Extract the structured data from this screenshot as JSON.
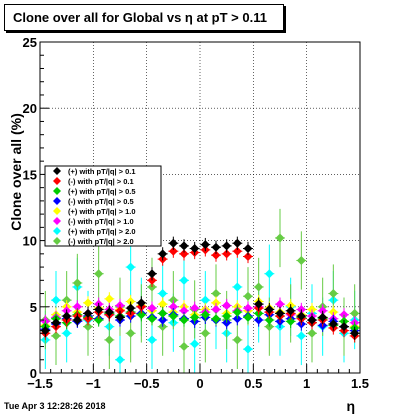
{
  "chart_data": {
    "type": "scatter",
    "title": "Clone  over all for Global vs  η at pT > 0.11",
    "xlabel": "η",
    "ylabel": "Clone  over all (%)",
    "xlim": [
      -1.5,
      1.5
    ],
    "ylim": [
      0,
      25
    ],
    "xticks": [
      "−1.5",
      "−1",
      "−0.5",
      "0",
      "0.5",
      "1",
      "1.5"
    ],
    "yticks": [
      "0",
      "5",
      "10",
      "15",
      "20",
      "25"
    ],
    "grid": true,
    "legend_position": "middle-left",
    "series": [
      {
        "name": "(+) with pT/|q| > 0.1",
        "color": "#000000",
        "points": [
          [
            -1.45,
            3.2
          ],
          [
            -1.35,
            3.8
          ],
          [
            -1.25,
            4.3
          ],
          [
            -1.15,
            4.0
          ],
          [
            -1.05,
            4.5
          ],
          [
            -0.95,
            4.8
          ],
          [
            -0.85,
            4.6
          ],
          [
            -0.75,
            4.2
          ],
          [
            -0.65,
            4.9
          ],
          [
            -0.55,
            5.3
          ],
          [
            -0.45,
            7.5
          ],
          [
            -0.35,
            9.0
          ],
          [
            -0.25,
            9.8
          ],
          [
            -0.15,
            9.6
          ],
          [
            -0.05,
            9.4
          ],
          [
            0.05,
            9.7
          ],
          [
            0.15,
            9.5
          ],
          [
            0.25,
            9.6
          ],
          [
            0.35,
            9.8
          ],
          [
            0.45,
            9.4
          ],
          [
            0.55,
            5.2
          ],
          [
            0.65,
            4.8
          ],
          [
            0.75,
            4.5
          ],
          [
            0.85,
            4.7
          ],
          [
            0.95,
            4.3
          ],
          [
            1.05,
            4.0
          ],
          [
            1.15,
            4.2
          ],
          [
            1.25,
            3.7
          ],
          [
            1.35,
            3.5
          ],
          [
            1.45,
            3.0
          ]
        ]
      },
      {
        "name": "(-) with pT/|q| > 0.1",
        "color": "#ff0000",
        "points": [
          [
            -1.45,
            3.0
          ],
          [
            -1.35,
            3.5
          ],
          [
            -1.25,
            4.0
          ],
          [
            -1.15,
            4.3
          ],
          [
            -1.05,
            4.1
          ],
          [
            -0.95,
            4.6
          ],
          [
            -0.85,
            4.4
          ],
          [
            -0.75,
            4.7
          ],
          [
            -0.65,
            4.5
          ],
          [
            -0.55,
            5.0
          ],
          [
            -0.45,
            7.0
          ],
          [
            -0.35,
            8.6
          ],
          [
            -0.25,
            9.2
          ],
          [
            -0.15,
            9.0
          ],
          [
            -0.05,
            9.1
          ],
          [
            0.05,
            9.3
          ],
          [
            0.15,
            8.9
          ],
          [
            0.25,
            9.0
          ],
          [
            0.35,
            9.2
          ],
          [
            0.45,
            8.8
          ],
          [
            0.55,
            4.9
          ],
          [
            0.65,
            4.6
          ],
          [
            0.75,
            4.3
          ],
          [
            0.85,
            4.5
          ],
          [
            0.95,
            4.1
          ],
          [
            1.05,
            3.8
          ],
          [
            1.15,
            4.0
          ],
          [
            1.25,
            3.4
          ],
          [
            1.35,
            3.2
          ],
          [
            1.45,
            2.8
          ]
        ]
      },
      {
        "name": "(+) with pT/|q| > 0.5",
        "color": "#00cc00",
        "points": [
          [
            -1.45,
            3.5
          ],
          [
            -1.35,
            4.1
          ],
          [
            -1.25,
            3.8
          ],
          [
            -1.15,
            4.4
          ],
          [
            -1.05,
            4.2
          ],
          [
            -0.95,
            4.0
          ],
          [
            -0.85,
            4.5
          ],
          [
            -0.75,
            4.3
          ],
          [
            -0.65,
            4.6
          ],
          [
            -0.55,
            4.4
          ],
          [
            -0.45,
            4.1
          ],
          [
            -0.35,
            4.5
          ],
          [
            -0.25,
            4.3
          ],
          [
            -0.15,
            4.0
          ],
          [
            -0.05,
            4.2
          ],
          [
            0.05,
            4.4
          ],
          [
            0.15,
            4.1
          ],
          [
            0.25,
            4.3
          ],
          [
            0.35,
            4.6
          ],
          [
            0.45,
            4.2
          ],
          [
            0.55,
            4.5
          ],
          [
            0.65,
            4.0
          ],
          [
            0.75,
            4.3
          ],
          [
            0.85,
            3.9
          ],
          [
            0.95,
            4.2
          ],
          [
            1.05,
            3.8
          ],
          [
            1.15,
            4.1
          ],
          [
            1.25,
            3.6
          ],
          [
            1.35,
            3.9
          ],
          [
            1.45,
            3.4
          ]
        ]
      },
      {
        "name": "(-) with pT/|q| > 0.5",
        "color": "#0000ff",
        "points": [
          [
            -1.45,
            3.3
          ],
          [
            -1.35,
            3.7
          ],
          [
            -1.25,
            4.1
          ],
          [
            -1.15,
            3.9
          ],
          [
            -1.05,
            4.3
          ],
          [
            -0.95,
            4.1
          ],
          [
            -0.85,
            4.4
          ],
          [
            -0.75,
            4.0
          ],
          [
            -0.65,
            4.3
          ],
          [
            -0.55,
            4.5
          ],
          [
            -0.45,
            4.2
          ],
          [
            -0.35,
            4.0
          ],
          [
            -0.25,
            4.4
          ],
          [
            -0.15,
            4.1
          ],
          [
            -0.05,
            3.9
          ],
          [
            0.05,
            4.2
          ],
          [
            0.15,
            4.0
          ],
          [
            0.25,
            3.8
          ],
          [
            0.35,
            4.1
          ],
          [
            0.45,
            4.3
          ],
          [
            0.55,
            4.0
          ],
          [
            0.65,
            4.4
          ],
          [
            0.75,
            3.9
          ],
          [
            0.85,
            4.1
          ],
          [
            0.95,
            3.7
          ],
          [
            1.05,
            4.0
          ],
          [
            1.15,
            3.6
          ],
          [
            1.25,
            3.9
          ],
          [
            1.35,
            3.5
          ],
          [
            1.45,
            3.2
          ]
        ]
      },
      {
        "name": "(+) with pT/|q| > 1.0",
        "color": "#ffff00",
        "points": [
          [
            -1.45,
            3.6
          ],
          [
            -1.35,
            4.4
          ],
          [
            -1.25,
            5.0
          ],
          [
            -1.15,
            4.6
          ],
          [
            -1.05,
            5.3
          ],
          [
            -0.95,
            4.9
          ],
          [
            -0.85,
            5.6
          ],
          [
            -0.75,
            4.8
          ],
          [
            -0.65,
            5.4
          ],
          [
            -0.55,
            5.1
          ],
          [
            -0.45,
            4.7
          ],
          [
            -0.35,
            5.2
          ],
          [
            -0.25,
            4.6
          ],
          [
            -0.15,
            5.0
          ],
          [
            -0.05,
            4.4
          ],
          [
            0.05,
            4.8
          ],
          [
            0.15,
            5.3
          ],
          [
            0.25,
            4.5
          ],
          [
            0.35,
            5.0
          ],
          [
            0.45,
            4.7
          ],
          [
            0.55,
            5.4
          ],
          [
            0.65,
            4.9
          ],
          [
            0.75,
            4.6
          ],
          [
            0.85,
            5.1
          ],
          [
            0.95,
            4.4
          ],
          [
            1.05,
            4.8
          ],
          [
            1.15,
            4.2
          ],
          [
            1.25,
            4.6
          ],
          [
            1.35,
            3.9
          ],
          [
            1.45,
            3.5
          ]
        ]
      },
      {
        "name": "(-) with pT/|q| > 1.0",
        "color": "#ff00ff",
        "points": [
          [
            -1.45,
            3.9
          ],
          [
            -1.35,
            4.2
          ],
          [
            -1.25,
            4.7
          ],
          [
            -1.15,
            5.0
          ],
          [
            -1.05,
            4.5
          ],
          [
            -0.95,
            5.2
          ],
          [
            -0.85,
            4.8
          ],
          [
            -0.75,
            5.1
          ],
          [
            -0.65,
            4.6
          ],
          [
            -0.55,
            5.0
          ],
          [
            -0.45,
            4.9
          ],
          [
            -0.35,
            4.5
          ],
          [
            -0.25,
            5.0
          ],
          [
            -0.15,
            4.7
          ],
          [
            -0.05,
            4.9
          ],
          [
            0.05,
            4.6
          ],
          [
            0.15,
            4.8
          ],
          [
            0.25,
            5.1
          ],
          [
            0.35,
            4.7
          ],
          [
            0.45,
            4.9
          ],
          [
            0.55,
            5.0
          ],
          [
            0.65,
            4.6
          ],
          [
            0.75,
            5.2
          ],
          [
            0.85,
            4.4
          ],
          [
            0.95,
            4.8
          ],
          [
            1.05,
            4.3
          ],
          [
            1.15,
            4.7
          ],
          [
            1.25,
            4.1
          ],
          [
            1.35,
            4.4
          ],
          [
            1.45,
            3.8
          ]
        ]
      },
      {
        "name": "(+) with pT/|q| > 2.0",
        "color": "#00ffff",
        "points": [
          [
            -1.45,
            2.5
          ],
          [
            -1.35,
            5.5
          ],
          [
            -1.25,
            3.0
          ],
          [
            -1.15,
            6.5
          ],
          [
            -1.05,
            4.0
          ],
          [
            -0.95,
            12.5
          ],
          [
            -0.85,
            3.5
          ],
          [
            -0.75,
            1.0
          ],
          [
            -0.65,
            8.0
          ],
          [
            -0.55,
            5.0
          ],
          [
            -0.45,
            2.5
          ],
          [
            -0.35,
            6.0
          ],
          [
            -0.25,
            3.8
          ],
          [
            -0.15,
            7.0
          ],
          [
            -0.05,
            2.2
          ],
          [
            0.05,
            5.5
          ],
          [
            0.15,
            4.0
          ],
          [
            0.25,
            3.0
          ],
          [
            0.35,
            6.5
          ],
          [
            0.45,
            1.8
          ],
          [
            0.55,
            4.5
          ],
          [
            0.65,
            7.5
          ],
          [
            0.75,
            3.5
          ],
          [
            0.85,
            5.0
          ],
          [
            0.95,
            2.8
          ],
          [
            1.05,
            4.5
          ],
          [
            1.15,
            3.5
          ],
          [
            1.25,
            5.5
          ],
          [
            1.35,
            3.0
          ],
          [
            1.45,
            4.0
          ]
        ]
      },
      {
        "name": "(-) with pT/|q| > 2.0",
        "color": "#66cc44",
        "points": [
          [
            -1.45,
            4.0
          ],
          [
            -1.35,
            2.8
          ],
          [
            -1.25,
            5.5
          ],
          [
            -1.15,
            6.8
          ],
          [
            -1.05,
            3.5
          ],
          [
            -0.95,
            7.5
          ],
          [
            -0.85,
            2.5
          ],
          [
            -0.75,
            5.0
          ],
          [
            -0.65,
            3.0
          ],
          [
            -0.55,
            4.5
          ],
          [
            -0.45,
            6.5
          ],
          [
            -0.35,
            3.5
          ],
          [
            -0.25,
            5.5
          ],
          [
            -0.15,
            2.0
          ],
          [
            -0.05,
            4.8
          ],
          [
            0.05,
            3.0
          ],
          [
            0.15,
            6.0
          ],
          [
            0.25,
            4.0
          ],
          [
            0.35,
            2.5
          ],
          [
            0.45,
            5.8
          ],
          [
            0.55,
            6.5
          ],
          [
            0.65,
            3.5
          ],
          [
            0.75,
            10.2
          ],
          [
            0.85,
            4.5
          ],
          [
            0.95,
            8.5
          ],
          [
            1.05,
            3.0
          ],
          [
            1.15,
            5.0
          ],
          [
            1.25,
            6.0
          ],
          [
            1.35,
            3.5
          ],
          [
            1.45,
            4.5
          ]
        ]
      }
    ]
  },
  "footer": "Tue Apr  3 12:28:26 2018",
  "colors": {
    "background": "#ffffff",
    "frame": "#000000",
    "grid": "#000000"
  }
}
